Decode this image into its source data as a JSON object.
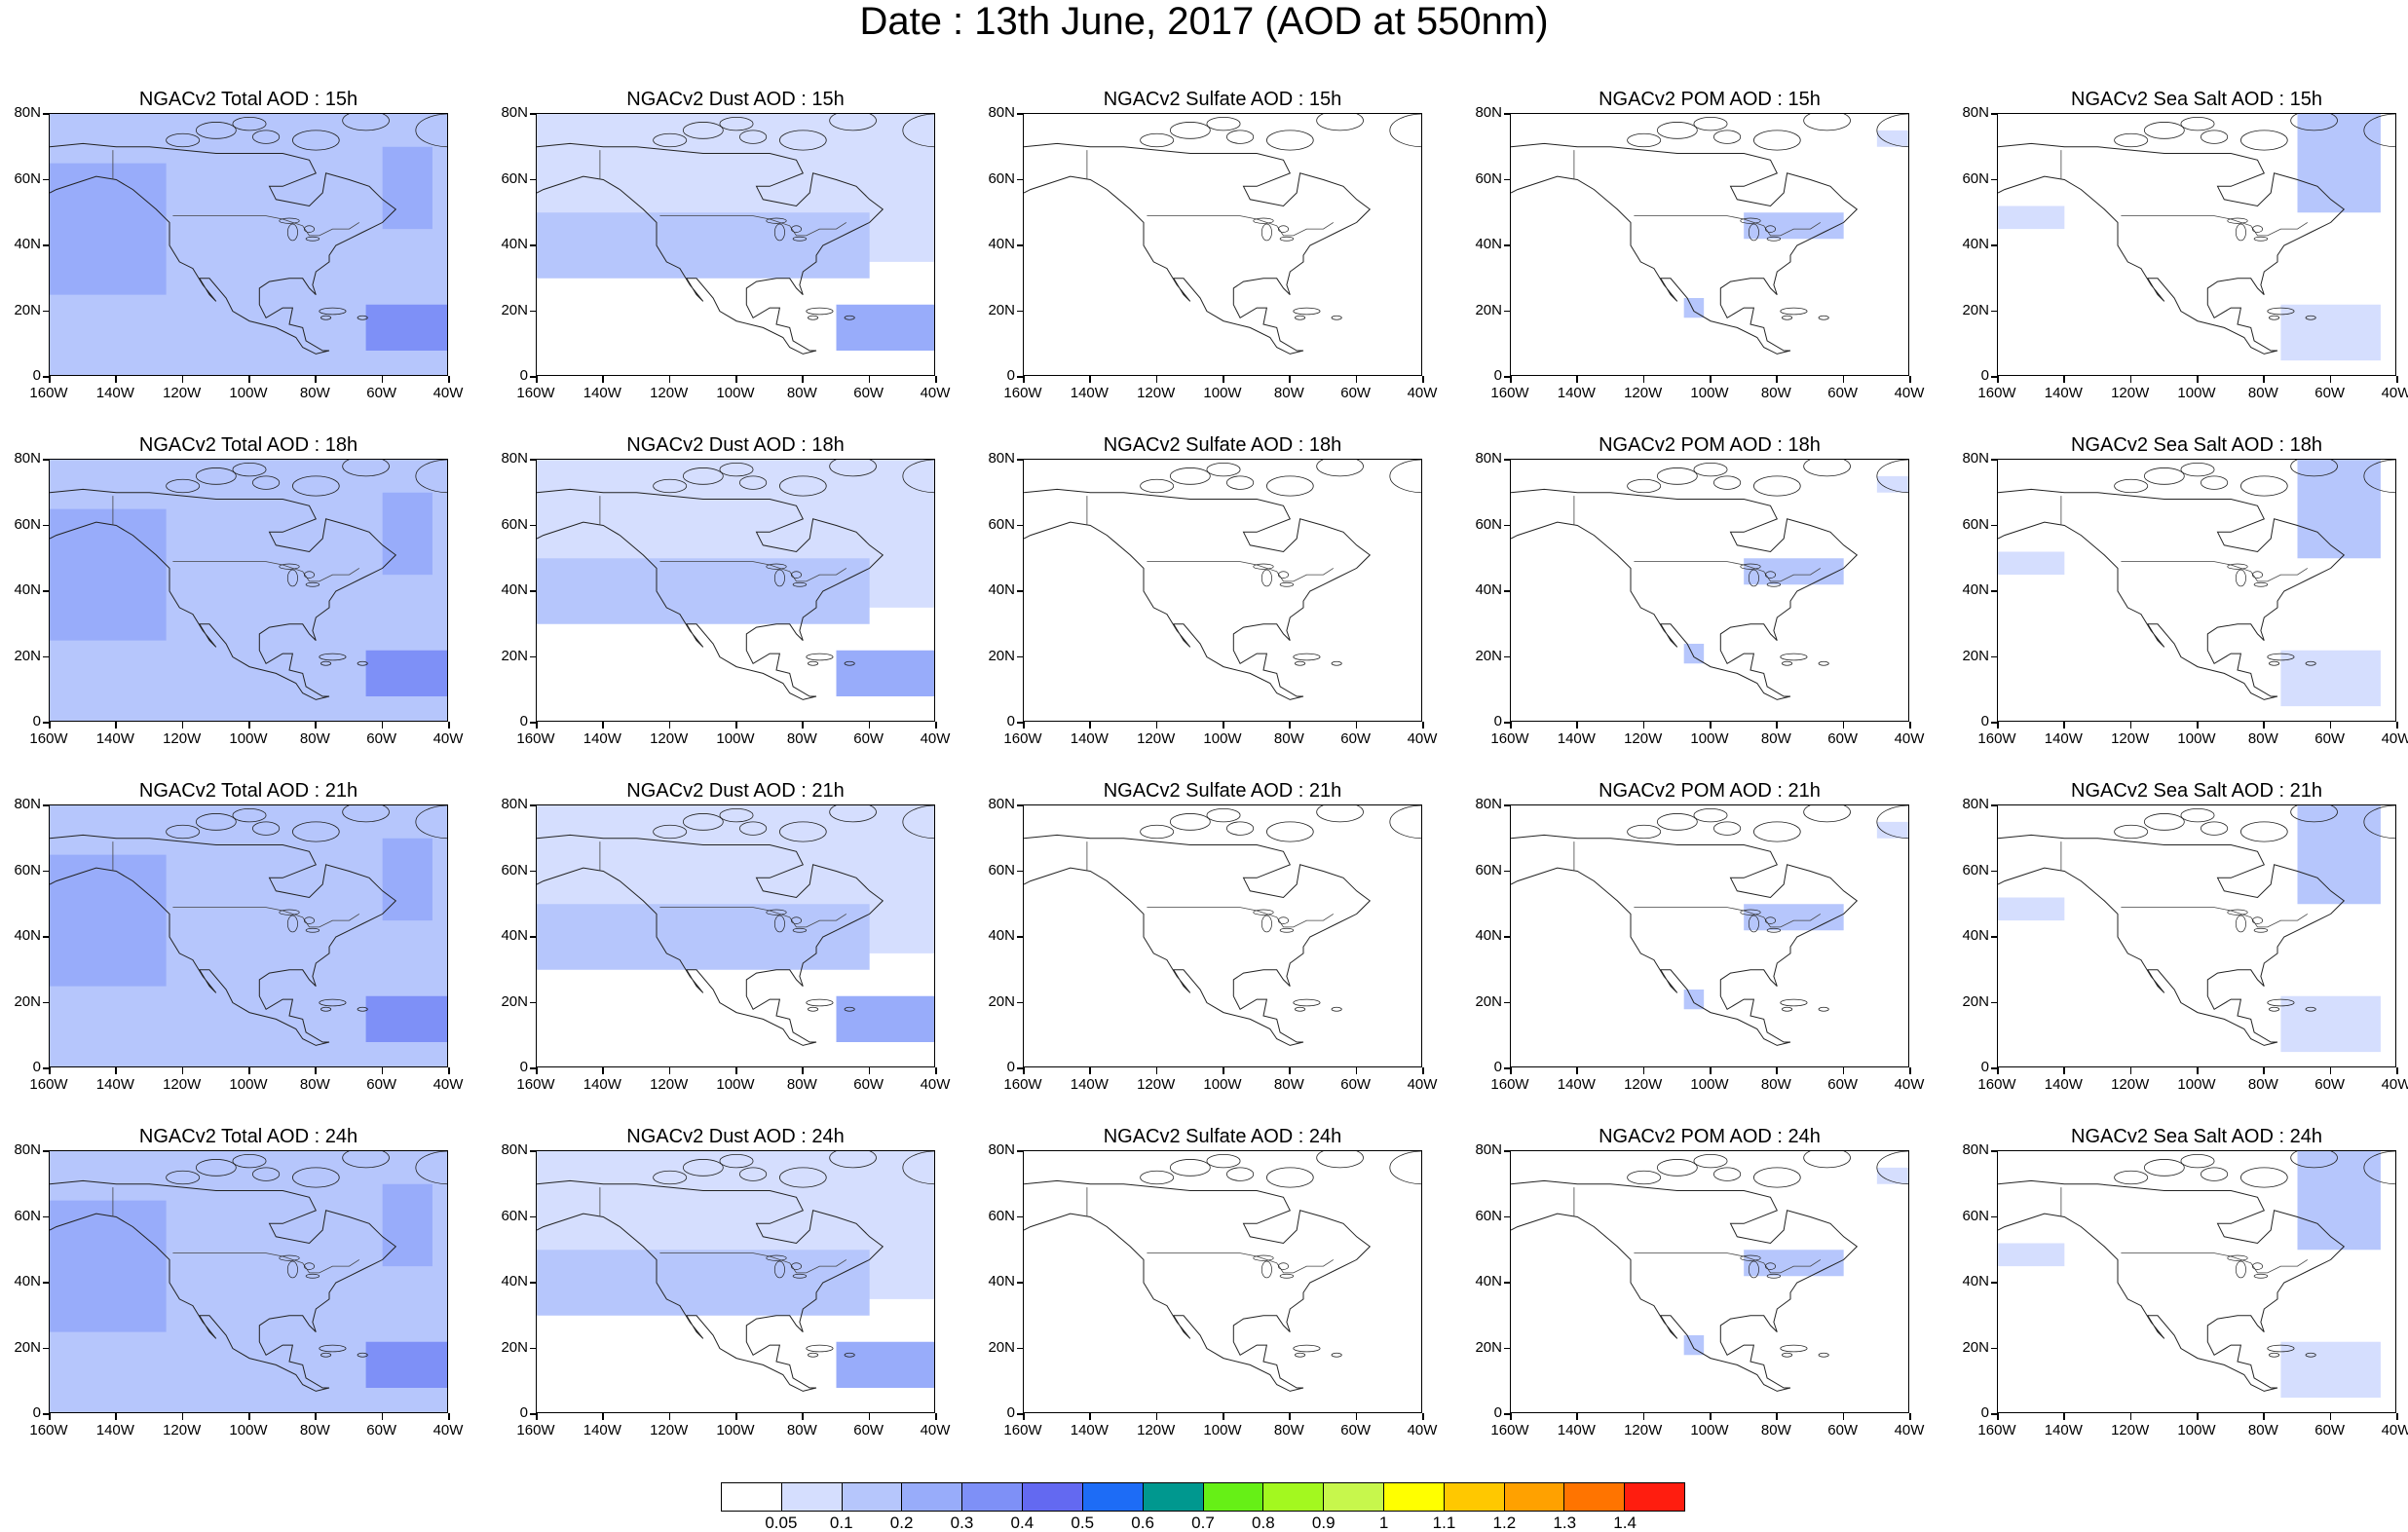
{
  "title": "Date : 13th June, 2017 (AOD at 550nm)",
  "panels": [
    [
      "NGACv2 Total AOD : 15h",
      "NGACv2 Dust AOD : 15h",
      "NGACv2 Sulfate AOD : 15h",
      "NGACv2 POM AOD : 15h",
      "NGACv2 Sea Salt AOD : 15h"
    ],
    [
      "NGACv2 Total AOD : 18h",
      "NGACv2 Dust AOD : 18h",
      "NGACv2 Sulfate AOD : 18h",
      "NGACv2 POM AOD : 18h",
      "NGACv2 Sea Salt AOD : 18h"
    ],
    [
      "NGACv2 Total AOD : 21h",
      "NGACv2 Dust AOD : 21h",
      "NGACv2 Sulfate AOD : 21h",
      "NGACv2 POM AOD : 21h",
      "NGACv2 Sea Salt AOD : 21h"
    ],
    [
      "NGACv2 Total AOD : 24h",
      "NGACv2 Dust AOD : 24h",
      "NGACv2 Sulfate AOD : 24h",
      "NGACv2 POM AOD : 24h",
      "NGACv2 Sea Salt  AOD : 24h"
    ]
  ],
  "axes": {
    "lat_labels": [
      "80N",
      "60N",
      "40N",
      "20N",
      "0"
    ],
    "lon_labels": [
      "160W",
      "140W",
      "120W",
      "100W",
      "80W",
      "60W",
      "40W"
    ]
  },
  "colorbar": {
    "colors": [
      "#ffffff",
      "#d5defe",
      "#b6c6fc",
      "#98acfa",
      "#7e90f7",
      "#6369f1",
      "#1d6cf6",
      "#00988f",
      "#66f016",
      "#a3f81f",
      "#c7f74c",
      "#ffff00",
      "#ffc800",
      "#ffa100",
      "#ff7400",
      "#ff1d0f"
    ],
    "labels": [
      "0.05",
      "0.1",
      "0.2",
      "0.3",
      "0.4",
      "0.5",
      "0.6",
      "0.7",
      "0.8",
      "0.9",
      "1",
      "1.1",
      "1.2",
      "1.3",
      "1.4"
    ]
  },
  "chart_data": {
    "type": "heatmap",
    "title": "Date : 13th June, 2017 (AOD at 550nm)",
    "region": {
      "lon_range": [
        -160,
        -40
      ],
      "lat_range": [
        0,
        80
      ]
    },
    "rows_hours": [
      "15h",
      "18h",
      "21h",
      "24h"
    ],
    "columns_species": [
      "Total",
      "Dust",
      "Sulfate",
      "POM",
      "Sea Salt"
    ],
    "levels": [
      0.05,
      0.1,
      0.2,
      0.3,
      0.4,
      0.5,
      0.6,
      0.7,
      0.8,
      0.9,
      1,
      1.1,
      1.2,
      1.3,
      1.4
    ],
    "features": {
      "Total": [
        {
          "lon": [
            -160,
            -40
          ],
          "lat": [
            0,
            80
          ],
          "level": 0.1
        },
        {
          "lon": [
            -160,
            -125
          ],
          "lat": [
            25,
            65
          ],
          "level": 0.2
        },
        {
          "lon": [
            -60,
            -45
          ],
          "lat": [
            45,
            70
          ],
          "level": 0.2
        },
        {
          "lon": [
            -65,
            -40
          ],
          "lat": [
            8,
            22
          ],
          "level": 0.3
        }
      ],
      "Dust": [
        {
          "lon": [
            -160,
            -40
          ],
          "lat": [
            35,
            80
          ],
          "level": 0.05
        },
        {
          "lon": [
            -160,
            -60
          ],
          "lat": [
            30,
            50
          ],
          "level": 0.1
        },
        {
          "lon": [
            -70,
            -40
          ],
          "lat": [
            8,
            22
          ],
          "level": 0.2
        }
      ],
      "Sulfate": [],
      "POM": [
        {
          "lon": [
            -90,
            -60
          ],
          "lat": [
            42,
            50
          ],
          "level": 0.1
        },
        {
          "lon": [
            -50,
            -40
          ],
          "lat": [
            70,
            75
          ],
          "level": 0.05
        },
        {
          "lon": [
            -108,
            -102
          ],
          "lat": [
            18,
            24
          ],
          "level": 0.1
        }
      ],
      "Sea Salt": [
        {
          "lon": [
            -70,
            -45
          ],
          "lat": [
            50,
            80
          ],
          "level": 0.1
        },
        {
          "lon": [
            -160,
            -140
          ],
          "lat": [
            45,
            52
          ],
          "level": 0.05
        },
        {
          "lon": [
            -75,
            -45
          ],
          "lat": [
            5,
            22
          ],
          "level": 0.05
        }
      ]
    }
  }
}
